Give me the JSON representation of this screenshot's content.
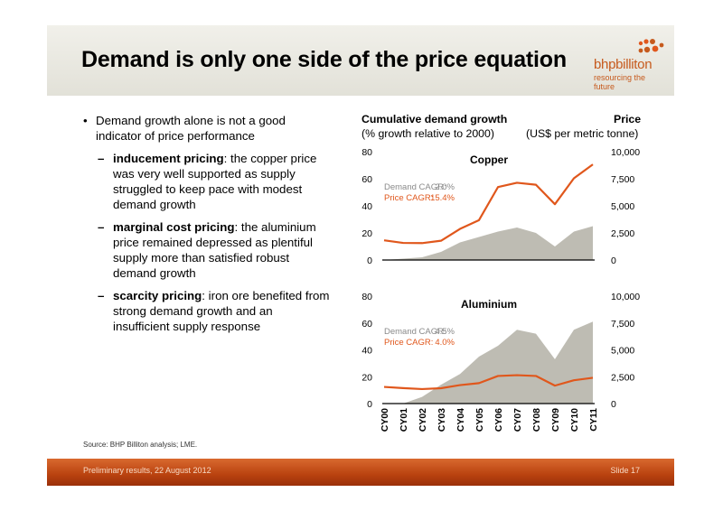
{
  "header": {
    "title": "Demand is only one side of the price equation",
    "logo_name": "bhpbilliton",
    "logo_tagline": "resourcing the future"
  },
  "bullets": {
    "main": "Demand growth alone is not a good indicator of price performance",
    "dash": "–",
    "items": [
      {
        "term": "inducement pricing",
        "text": ": the copper price was very well supported as supply struggled to keep pace with modest demand growth"
      },
      {
        "term": "marginal cost pricing",
        "text": ": the aluminium price remained depressed as plentiful supply more than satisfied robust demand growth"
      },
      {
        "term": "scarcity pricing",
        "text": ": iron ore benefited from strong demand growth and an insufficient supply response"
      }
    ]
  },
  "chart_header": {
    "left_title": "Cumulative demand growth",
    "left_sub": "(% growth relative to 2000)",
    "right_title": "Price",
    "right_sub": "(US$ per metric tonne)"
  },
  "chart_data": [
    {
      "type": "area",
      "title": "Copper",
      "categories": [
        "CY00",
        "CY01",
        "CY02",
        "CY03",
        "CY04",
        "CY05",
        "CY06",
        "CY07",
        "CY08",
        "CY09",
        "CY10",
        "CY11"
      ],
      "left_axis": {
        "ylim": [
          0,
          80
        ],
        "ticks": [
          "0",
          "20",
          "40",
          "60",
          "80"
        ]
      },
      "right_axis": {
        "ylim": [
          0,
          10000
        ],
        "ticks": [
          "0",
          "2,500",
          "5,000",
          "7,500",
          "10,000"
        ]
      },
      "series": [
        {
          "type": "area",
          "axis": "left",
          "values": [
            0,
            1,
            2,
            6,
            13,
            17,
            21,
            24,
            20,
            10,
            21,
            25
          ],
          "color": "#bebcb3"
        },
        {
          "type": "line",
          "axis": "right",
          "values": [
            1820,
            1580,
            1560,
            1780,
            2870,
            3680,
            6730,
            7130,
            6950,
            5150,
            7540,
            8820
          ],
          "color": "#e0571c"
        }
      ],
      "annotations": [
        {
          "label": "Demand CAGR:",
          "value": "2.0%",
          "color": "#8a8a8a"
        },
        {
          "label": "Price CAGR:",
          "value": "15.4%",
          "color": "#e0571c"
        }
      ],
      "grid": false
    },
    {
      "type": "area",
      "title": "Aluminium",
      "categories": [
        "CY00",
        "CY01",
        "CY02",
        "CY03",
        "CY04",
        "CY05",
        "CY06",
        "CY07",
        "CY08",
        "CY09",
        "CY10",
        "CY11"
      ],
      "left_axis": {
        "ylim": [
          0,
          80
        ],
        "ticks": [
          "0",
          "20",
          "40",
          "60",
          "80"
        ]
      },
      "right_axis": {
        "ylim": [
          0,
          10000
        ],
        "ticks": [
          "0",
          "2,500",
          "5,000",
          "7,500",
          "10,000"
        ]
      },
      "series": [
        {
          "type": "area",
          "axis": "left",
          "values": [
            0,
            0,
            5,
            14,
            22,
            35,
            43,
            55,
            52,
            33,
            55,
            61
          ],
          "color": "#bebcb3"
        },
        {
          "type": "line",
          "axis": "right",
          "values": [
            1550,
            1440,
            1350,
            1430,
            1720,
            1900,
            2570,
            2640,
            2570,
            1670,
            2170,
            2400
          ],
          "color": "#e0571c"
        }
      ],
      "annotations": [
        {
          "label": "Demand CAGR:",
          "value": "4.5%",
          "color": "#8a8a8a"
        },
        {
          "label": "Price CAGR:",
          "value": "4.0%",
          "color": "#e0571c"
        }
      ],
      "grid": false
    }
  ],
  "footer": {
    "source": "Source: BHP Billiton analysis; LME.",
    "left": "Preliminary results, 22 August 2012",
    "right": "Slide 17"
  }
}
